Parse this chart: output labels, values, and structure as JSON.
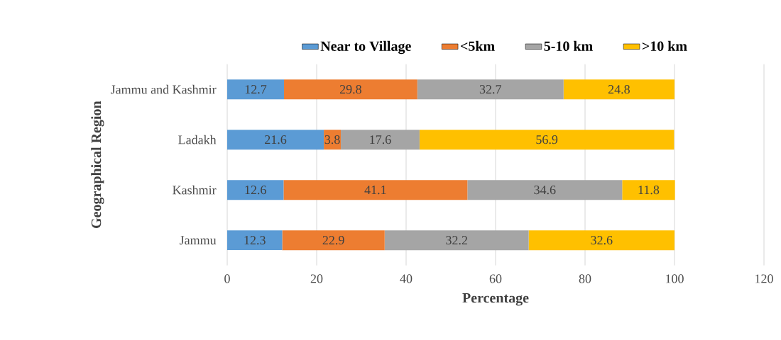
{
  "chart_data": {
    "type": "bar",
    "orientation": "horizontal",
    "stacked": true,
    "data_labels": true,
    "xlabel": "Percentage",
    "ylabel": "Geographical Region",
    "categories": [
      "Jammu and Kashmir",
      "Ladakh",
      "Kashmir",
      "Jammu"
    ],
    "series": [
      {
        "name": "Near to Village",
        "color": "#5b9bd5",
        "values": [
          12.7,
          21.6,
          12.6,
          12.3
        ]
      },
      {
        "name": "<5km",
        "color": "#ed7d31",
        "values": [
          29.8,
          3.8,
          41.1,
          22.9
        ]
      },
      {
        "name": "5-10 km",
        "color": "#a5a5a5",
        "values": [
          32.7,
          17.6,
          34.6,
          32.2
        ]
      },
      {
        "name": ">10 km",
        "color": "#ffc000",
        "values": [
          24.8,
          56.9,
          11.8,
          32.6
        ]
      }
    ],
    "xlim": [
      0,
      120
    ],
    "xticks": [
      0,
      20,
      40,
      60,
      80,
      100,
      120
    ],
    "grid": "x",
    "legend": "top"
  }
}
